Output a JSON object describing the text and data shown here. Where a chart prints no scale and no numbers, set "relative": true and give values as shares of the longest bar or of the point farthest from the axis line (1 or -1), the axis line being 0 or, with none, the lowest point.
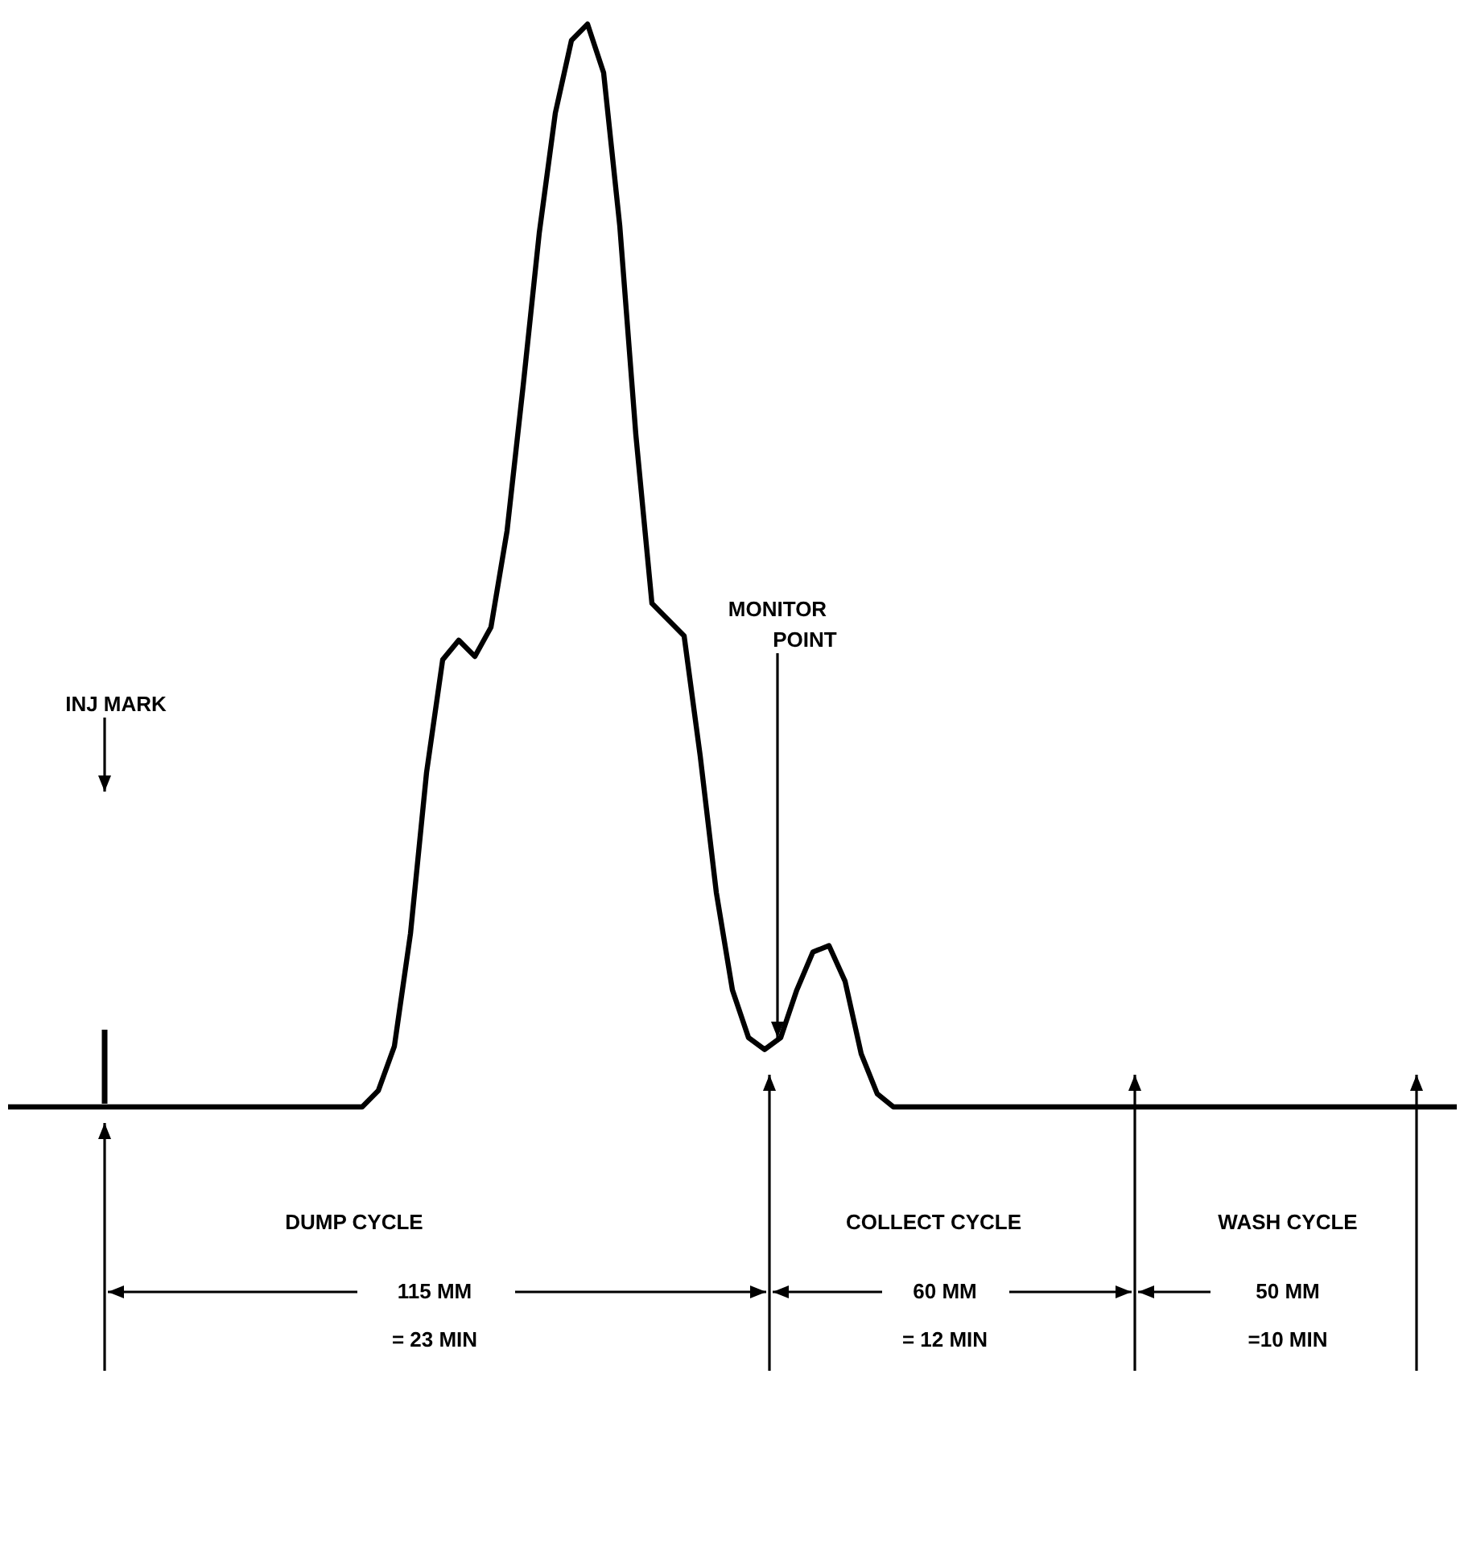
{
  "chart_data": {
    "type": "line",
    "relative": true,
    "categories": [
      null,
      null,
      null,
      null,
      null,
      null,
      null,
      null,
      null,
      null,
      null,
      null,
      null,
      null,
      null,
      null,
      null,
      null,
      null,
      null,
      null,
      null,
      null,
      null,
      null,
      null,
      null,
      null,
      null,
      null,
      null,
      null,
      null,
      null,
      null,
      null,
      null,
      null,
      null,
      null,
      null,
      null,
      null,
      null,
      null,
      null,
      null,
      null,
      null,
      null,
      null,
      null,
      null,
      null,
      null,
      null,
      null,
      null,
      null,
      null,
      null,
      null,
      null,
      null,
      null,
      null,
      null,
      null,
      null,
      null,
      null,
      null,
      null,
      null,
      null,
      null,
      null,
      null,
      null,
      null,
      null,
      null,
      null,
      null,
      null,
      null,
      null,
      null,
      null,
      null,
      null
    ],
    "series": [
      {
        "color": "#000000",
        "values": [
          0,
          0,
          0,
          0,
          0,
          0,
          0,
          0,
          0,
          0,
          0,
          0,
          0,
          0,
          0,
          0,
          0,
          0,
          0,
          0,
          0,
          0,
          0,
          0.015,
          0.056,
          0.16,
          0.309,
          0.413,
          0.431,
          0.416,
          0.443,
          0.532,
          0.666,
          0.807,
          0.918,
          0.985,
          1,
          0.955,
          0.814,
          0.621,
          0.465,
          0.45,
          0.435,
          0.324,
          0.198,
          0.108,
          0.064,
          0.053,
          0.064,
          0.108,
          0.143,
          0.149,
          0.116,
          0.049,
          0.012,
          0,
          0,
          0,
          0,
          0,
          0,
          0,
          0,
          0,
          0,
          0,
          0,
          0,
          0,
          0,
          0,
          0,
          0,
          0,
          0,
          0,
          0,
          0,
          0,
          0,
          0,
          0,
          0,
          0,
          0,
          0,
          0,
          0,
          0,
          0,
          0
        ]
      }
    ],
    "annotations": [
      "INJ MARK",
      "MONITOR POINT",
      "DUMP CYCLE",
      "115 MM",
      "= 23 MIN",
      "COLLECT CYCLE",
      "60 MM",
      "= 12 MIN",
      "WASH CYCLE",
      "50 MM",
      "=10 MIN"
    ]
  }
}
